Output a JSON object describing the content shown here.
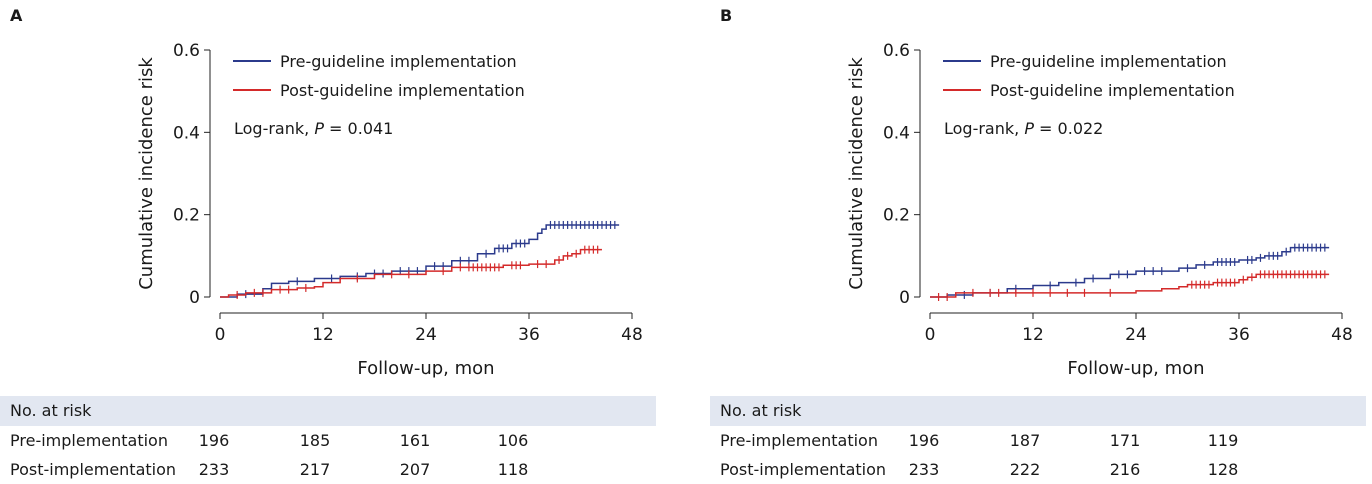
{
  "panels": [
    {
      "letter": "A",
      "logrank_prefix": "Log-rank, ",
      "logrank_p_label": "P",
      "logrank_value": " = 0.041",
      "risk_table": {
        "header": "No. at risk",
        "rows": [
          {
            "label": "Pre-implementation",
            "values": [
              "196",
              "185",
              "161",
              "106"
            ]
          },
          {
            "label": "Post-implementation",
            "values": [
              "233",
              "217",
              "207",
              "118"
            ]
          }
        ]
      }
    },
    {
      "letter": "B",
      "logrank_prefix": "Log-rank, ",
      "logrank_p_label": "P",
      "logrank_value": " = 0.022",
      "risk_table": {
        "header": "No. at risk",
        "rows": [
          {
            "label": "Pre-implementation",
            "values": [
              "196",
              "187",
              "171",
              "119"
            ]
          },
          {
            "label": "Post-implementation",
            "values": [
              "233",
              "222",
              "216",
              "128"
            ]
          }
        ]
      }
    }
  ],
  "chart_data": [
    {
      "type": "line",
      "step": true,
      "ylabel": "Cumulative incidence risk",
      "xlabel": "Follow-up, mon",
      "xlim": [
        0,
        48
      ],
      "ylim": [
        0,
        0.6
      ],
      "xticks": [
        "0",
        "12",
        "24",
        "36",
        "48"
      ],
      "yticks": [
        "0",
        "0.2",
        "0.4",
        "0.6"
      ],
      "legend_position": "top-left",
      "series": [
        {
          "name": "Pre-guideline implementation",
          "color": "#2b3a8c",
          "x": [
            0,
            2,
            5,
            6,
            8,
            11,
            14,
            17,
            20,
            24,
            27,
            30,
            32,
            34,
            36,
            37,
            37.5,
            38,
            46.5
          ],
          "y": [
            0,
            0.007,
            0.02,
            0.033,
            0.038,
            0.045,
            0.05,
            0.057,
            0.063,
            0.075,
            0.088,
            0.105,
            0.118,
            0.13,
            0.14,
            0.155,
            0.165,
            0.175,
            0.175
          ],
          "censor_x": [
            3,
            9,
            13,
            16,
            18,
            19,
            21,
            22,
            23,
            25,
            26,
            28,
            29,
            31,
            32.5,
            33,
            33.5,
            34.5,
            35,
            35.5,
            38.5,
            39,
            39.5,
            40,
            40.5,
            41,
            41.5,
            42,
            42.5,
            43,
            43.5,
            44,
            44.5,
            45,
            45.5,
            46
          ]
        },
        {
          "name": "Post-guideline implementation",
          "color": "#d42a2a",
          "x": [
            0,
            1,
            3,
            6,
            9,
            11,
            12,
            14,
            18,
            24,
            27,
            33,
            36,
            39,
            40,
            41,
            42,
            44.5
          ],
          "y": [
            0,
            0.005,
            0.01,
            0.018,
            0.022,
            0.025,
            0.035,
            0.045,
            0.055,
            0.063,
            0.072,
            0.077,
            0.08,
            0.09,
            0.1,
            0.105,
            0.115,
            0.115
          ],
          "censor_x": [
            2,
            4,
            5,
            7,
            8,
            10,
            16,
            20,
            22,
            26,
            28,
            29,
            29.5,
            30,
            30.5,
            31,
            31.5,
            32,
            32.5,
            34,
            34.5,
            35,
            37,
            38,
            39.5,
            40.5,
            41.5,
            42.5,
            43,
            43.5,
            44
          ]
        }
      ]
    },
    {
      "type": "line",
      "step": true,
      "ylabel": "Cumulative incidence risk",
      "xlabel": "Follow-up, mon",
      "xlim": [
        0,
        48
      ],
      "ylim": [
        0,
        0.6
      ],
      "xticks": [
        "0",
        "12",
        "24",
        "36",
        "48"
      ],
      "yticks": [
        "0",
        "0.2",
        "0.4",
        "0.6"
      ],
      "legend_position": "top-left",
      "series": [
        {
          "name": "Pre-guideline implementation",
          "color": "#2b3a8c",
          "x": [
            0,
            2,
            5,
            9,
            12,
            15,
            18,
            21,
            24,
            29,
            31,
            33,
            36,
            38,
            39,
            41,
            42,
            46.5
          ],
          "y": [
            0,
            0.005,
            0.01,
            0.02,
            0.028,
            0.035,
            0.045,
            0.055,
            0.063,
            0.07,
            0.078,
            0.085,
            0.09,
            0.095,
            0.1,
            0.11,
            0.12,
            0.12
          ],
          "censor_x": [
            4,
            7,
            10,
            14,
            17,
            19,
            22,
            23,
            25,
            26,
            27,
            30,
            32,
            33.5,
            34,
            34.5,
            35,
            35.5,
            37,
            37.5,
            38.5,
            39.5,
            40,
            40.5,
            41.5,
            42.5,
            43,
            43.5,
            44,
            44.5,
            45,
            45.5,
            46
          ]
        },
        {
          "name": "Post-guideline implementation",
          "color": "#d42a2a",
          "x": [
            0,
            3,
            20,
            24,
            27,
            29,
            30,
            33,
            36,
            37,
            38,
            46.5
          ],
          "y": [
            0,
            0.01,
            0.01,
            0.015,
            0.02,
            0.025,
            0.03,
            0.035,
            0.042,
            0.048,
            0.055,
            0.055
          ],
          "censor_x": [
            1,
            2,
            5,
            7,
            8,
            10,
            12,
            14,
            16,
            18,
            21,
            30.5,
            31,
            31.5,
            32,
            32.5,
            33.5,
            34,
            34.5,
            35,
            35.5,
            36.5,
            37.5,
            38.5,
            39,
            39.5,
            40,
            40.5,
            41,
            41.5,
            42,
            42.5,
            43,
            43.5,
            44,
            44.5,
            45,
            45.5,
            46
          ]
        }
      ]
    }
  ]
}
